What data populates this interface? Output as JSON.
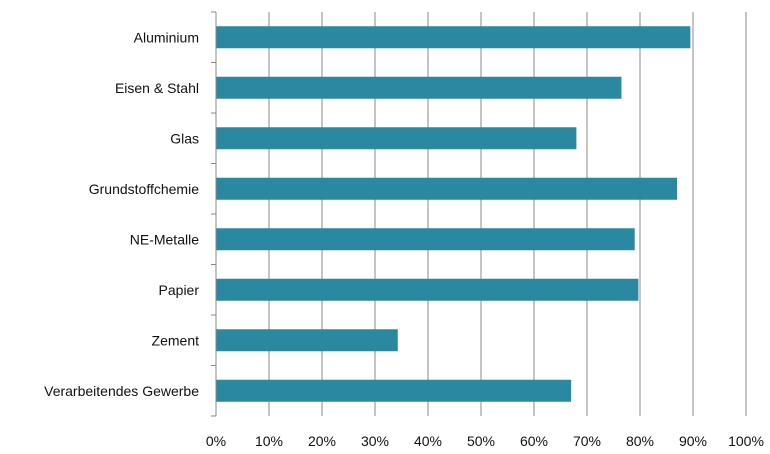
{
  "chart_data": {
    "type": "bar",
    "orientation": "horizontal",
    "categories": [
      "Aluminium",
      "Eisen & Stahl",
      "Glas",
      "Grundstoffchemie",
      "NE-Metalle",
      "Papier",
      "Zement",
      "Verarbeitendes Gewerbe"
    ],
    "values": [
      89.5,
      76.5,
      68,
      87,
      79,
      79.7,
      34.3,
      67
    ],
    "xlim": [
      0,
      100
    ],
    "xticks": [
      "0%",
      "10%",
      "20%",
      "30%",
      "40%",
      "50%",
      "60%",
      "70%",
      "80%",
      "90%",
      "100%"
    ],
    "value_unit": "%",
    "grid": "vertical",
    "legend": "none",
    "bar_color": "#2a88a1",
    "grid_color": "#888888"
  }
}
